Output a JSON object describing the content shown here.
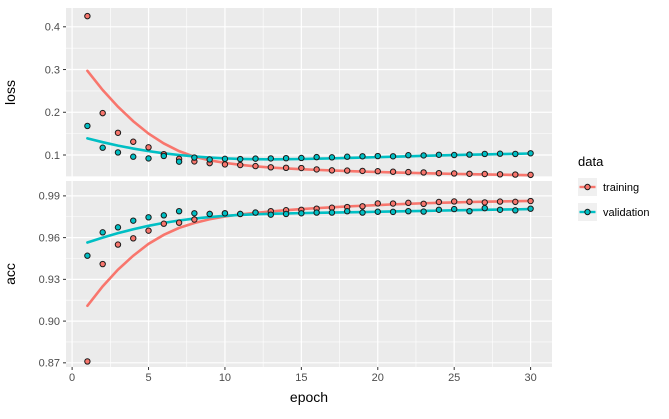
{
  "chart_data": {
    "type": "scatter",
    "title": "",
    "xlabel": "epoch",
    "x": [
      1,
      2,
      3,
      4,
      5,
      6,
      7,
      8,
      9,
      10,
      11,
      12,
      13,
      14,
      15,
      16,
      17,
      18,
      19,
      20,
      21,
      22,
      23,
      24,
      25,
      26,
      27,
      28,
      29,
      30
    ],
    "xlim": [
      -0.4,
      31.4
    ],
    "x_ticks": [
      {
        "v": 0,
        "label": "0"
      },
      {
        "v": 5,
        "label": "5"
      },
      {
        "v": 10,
        "label": "10"
      },
      {
        "v": 15,
        "label": "15"
      },
      {
        "v": 20,
        "label": "20"
      },
      {
        "v": 25,
        "label": "25"
      },
      {
        "v": 30,
        "label": "30"
      }
    ],
    "x_minor_ticks": [
      2.5,
      7.5,
      12.5,
      17.5,
      22.5,
      27.5
    ],
    "grid": "on",
    "legend": {
      "title": "data",
      "position": "right",
      "entries": [
        {
          "label": "training",
          "color": "#F8766D"
        },
        {
          "label": "validation",
          "color": "#00BFC4"
        }
      ]
    },
    "theme": {
      "panel_bg": "#EBEBEB",
      "grid": "#FFFFFF",
      "tick": "#333333",
      "point_stroke": "#1A1A1A",
      "legend_key_bg": "#F0F0F0"
    },
    "panels": [
      {
        "ylabel": "loss",
        "ylim": [
          0.0485,
          0.444
        ],
        "y_ticks": [
          {
            "v": 0.1,
            "label": "0.1"
          },
          {
            "v": 0.2,
            "label": "0.2"
          },
          {
            "v": 0.3,
            "label": "0.3"
          },
          {
            "v": 0.4,
            "label": "0.4"
          }
        ],
        "y_minor_ticks": [
          0.05,
          0.15,
          0.25,
          0.35
        ],
        "series": [
          {
            "name": "training",
            "points": [
              0.425,
              0.198,
              0.152,
              0.131,
              0.118,
              0.102,
              0.091,
              0.085,
              0.081,
              0.078,
              0.0765,
              0.074,
              0.0712,
              0.07,
              0.0695,
              0.0663,
              0.064,
              0.0635,
              0.0628,
              0.062,
              0.0608,
              0.06,
              0.0592,
              0.0575,
              0.0568,
              0.056,
              0.0555,
              0.0548,
              0.0542,
              0.0535
            ],
            "smooth": [
              0.297,
              0.252,
              0.213,
              0.179,
              0.15,
              0.127,
              0.109,
              0.096,
              0.0875,
              0.0815,
              0.077,
              0.0735,
              0.0705,
              0.0685,
              0.0668,
              0.0652,
              0.0638,
              0.0625,
              0.0613,
              0.0602,
              0.0592,
              0.0583,
              0.0574,
              0.0566,
              0.0558,
              0.0551,
              0.0544,
              0.0538,
              0.0533,
              0.0528
            ]
          },
          {
            "name": "validation",
            "points": [
              0.168,
              0.117,
              0.106,
              0.096,
              0.092,
              0.0977,
              0.0844,
              0.094,
              0.0895,
              0.091,
              0.0905,
              0.0915,
              0.092,
              0.0925,
              0.093,
              0.095,
              0.0945,
              0.096,
              0.097,
              0.0975,
              0.097,
              0.0995,
              0.099,
              0.1005,
              0.1,
              0.101,
              0.1025,
              0.103,
              0.1025,
              0.104
            ],
            "smooth": [
              0.139,
              0.13,
              0.122,
              0.115,
              0.109,
              0.104,
              0.1,
              0.0967,
              0.094,
              0.0921,
              0.0908,
              0.0901,
              0.0899,
              0.0901,
              0.0906,
              0.0913,
              0.0921,
              0.093,
              0.094,
              0.095,
              0.096,
              0.097,
              0.098,
              0.099,
              0.0999,
              0.1007,
              0.1014,
              0.1021,
              0.1028,
              0.1035
            ]
          }
        ]
      },
      {
        "ylabel": "acc",
        "ylim": [
          0.867,
          1.0007
        ],
        "y_ticks": [
          {
            "v": 0.87,
            "label": "0.87"
          },
          {
            "v": 0.9,
            "label": "0.90"
          },
          {
            "v": 0.93,
            "label": "0.93"
          },
          {
            "v": 0.96,
            "label": "0.96"
          },
          {
            "v": 0.99,
            "label": "0.99"
          }
        ],
        "y_minor_ticks": [
          0.885,
          0.915,
          0.945,
          0.975
        ],
        "series": [
          {
            "name": "training",
            "points": [
              0.871,
              0.941,
              0.955,
              0.9595,
              0.965,
              0.97,
              0.9707,
              0.973,
              0.977,
              0.9775,
              0.977,
              0.978,
              0.979,
              0.9797,
              0.98,
              0.9808,
              0.9815,
              0.982,
              0.9825,
              0.9846,
              0.9845,
              0.985,
              0.9843,
              0.9856,
              0.986,
              0.9858,
              0.9853,
              0.9859,
              0.9857,
              0.9863
            ],
            "smooth": [
              0.911,
              0.925,
              0.937,
              0.947,
              0.9555,
              0.962,
              0.967,
              0.9705,
              0.9732,
              0.9752,
              0.9767,
              0.9778,
              0.9788,
              0.9797,
              0.9805,
              0.9812,
              0.9818,
              0.9824,
              0.9829,
              0.9834,
              0.9839,
              0.9843,
              0.9847,
              0.985,
              0.9853,
              0.9856,
              0.9858,
              0.986,
              0.9862,
              0.9864
            ]
          },
          {
            "name": "validation",
            "points": [
              0.947,
              0.9638,
              0.9674,
              0.9722,
              0.9746,
              0.976,
              0.979,
              0.9775,
              0.977,
              0.9775,
              0.977,
              0.978,
              0.9765,
              0.977,
              0.9775,
              0.978,
              0.978,
              0.979,
              0.978,
              0.9786,
              0.9785,
              0.979,
              0.9787,
              0.98,
              0.9805,
              0.979,
              0.9812,
              0.98,
              0.9796,
              0.9808
            ],
            "smooth": [
              0.9565,
              0.96,
              0.9632,
              0.966,
              0.9685,
              0.9706,
              0.9723,
              0.9737,
              0.9748,
              0.9757,
              0.9763,
              0.9768,
              0.9771,
              0.9774,
              0.9776,
              0.9778,
              0.978,
              0.9782,
              0.9784,
              0.9786,
              0.9788,
              0.979,
              0.9792,
              0.9794,
              0.9796,
              0.9798,
              0.98,
              0.9802,
              0.9803,
              0.9805
            ]
          }
        ]
      }
    ]
  }
}
